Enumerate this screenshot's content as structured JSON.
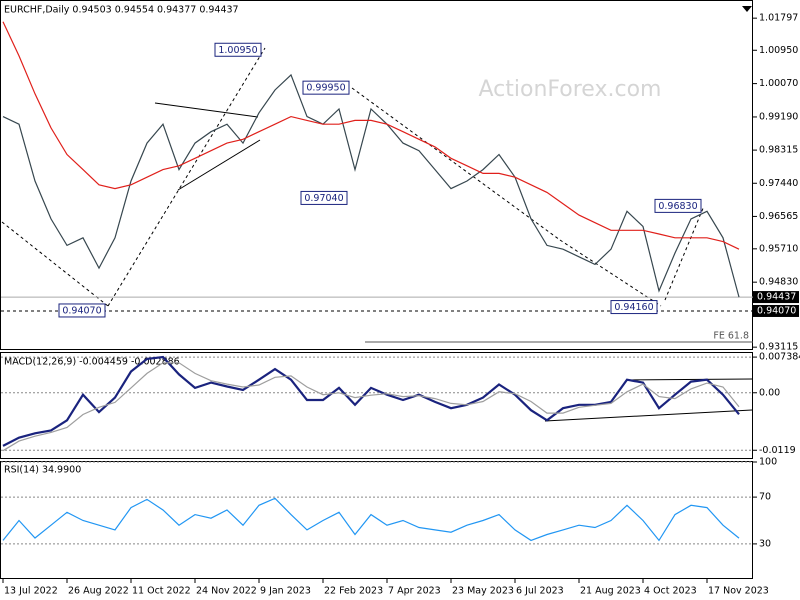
{
  "chart_data": [
    {
      "type": "line",
      "title": "EURCHF,Daily  0.94503 0.94554 0.94377 0.94437",
      "watermark": "ActionForex.com",
      "x": [
        0,
        8,
        16,
        24,
        32,
        40,
        48,
        56,
        64,
        72,
        80,
        88,
        96,
        104,
        112,
        120,
        128,
        136,
        144,
        152,
        160,
        168,
        176,
        184,
        192,
        200,
        208,
        216,
        224,
        232,
        240,
        248,
        256,
        264,
        272,
        280,
        288,
        296,
        304,
        312,
        320,
        328,
        336,
        344,
        352,
        360,
        368
      ],
      "xlim": [
        -1,
        375
      ],
      "xticks": [
        {
          "value": 0,
          "label": "13 Jul 2022"
        },
        {
          "value": 32,
          "label": "26 Aug 2022"
        },
        {
          "value": 64,
          "label": "11 Oct 2022"
        },
        {
          "value": 96,
          "label": "24 Nov 2022"
        },
        {
          "value": 128,
          "label": "9 Jan 2023"
        },
        {
          "value": 160,
          "label": "22 Feb 2023"
        },
        {
          "value": 192,
          "label": "7 Apr 2023"
        },
        {
          "value": 224,
          "label": "23 May 2023"
        },
        {
          "value": 256,
          "label": "6 Jul 2023"
        },
        {
          "value": 288,
          "label": "21 Aug 2023"
        },
        {
          "value": 320,
          "label": "4 Oct 2023"
        },
        {
          "value": 352,
          "label": "17 Nov 2023"
        }
      ],
      "ylim": [
        0.9304,
        1.0225
      ],
      "yticks": [
        1.01797,
        {
          "value": 1.0095,
          "label": "1.00950"
        },
        {
          "value": 1.0007,
          "label": "1.00070"
        },
        {
          "value": 0.9919,
          "label": "0.99190"
        },
        0.98315,
        {
          "value": 0.9744,
          "label": "0.97440"
        },
        0.96565,
        {
          "value": 0.9571,
          "label": "0.95710"
        },
        {
          "value": 0.9483,
          "label": "0.94830"
        },
        0.93115
      ],
      "series": [
        {
          "color": "#37474f",
          "values": [
            0.992,
            0.99,
            0.975,
            0.965,
            0.958,
            0.96,
            0.952,
            0.96,
            0.975,
            0.985,
            0.99,
            0.978,
            0.985,
            0.988,
            0.99,
            0.985,
            0.993,
            0.999,
            1.003,
            0.992,
            0.99,
            0.994,
            0.978,
            0.994,
            0.99,
            0.985,
            0.983,
            0.978,
            0.973,
            0.975,
            0.978,
            0.982,
            0.976,
            0.965,
            0.958,
            0.957,
            0.955,
            0.953,
            0.957,
            0.967,
            0.963,
            0.946,
            0.956,
            0.965,
            0.967,
            0.96,
            0.94437
          ]
        },
        {
          "color": "#e0201b",
          "values": [
            1.017,
            1.008,
            0.998,
            0.989,
            0.982,
            0.978,
            0.974,
            0.973,
            0.974,
            0.976,
            0.978,
            0.979,
            0.981,
            0.983,
            0.985,
            0.986,
            0.988,
            0.99,
            0.992,
            0.991,
            0.99,
            0.99,
            0.991,
            0.991,
            0.99,
            0.988,
            0.986,
            0.984,
            0.981,
            0.979,
            0.977,
            0.977,
            0.976,
            0.974,
            0.972,
            0.969,
            0.966,
            0.964,
            0.962,
            0.962,
            0.962,
            0.961,
            0.96,
            0.96,
            0.96,
            0.959,
            0.957
          ]
        }
      ],
      "price_labels": [
        {
          "value": 0.94437,
          "label": "0.94437"
        },
        {
          "value": 0.9407,
          "label": "0.94070"
        }
      ],
      "annotations": [
        {
          "x": 131,
          "value": 1.0095,
          "label": "1.00950"
        },
        {
          "x": 175,
          "value": 0.9995,
          "label": "0.99950"
        },
        {
          "x": 174,
          "value": 0.9704,
          "label": "0.97040"
        },
        {
          "x": 53,
          "value": 0.9407,
          "label": "0.94070"
        },
        {
          "x": 329,
          "value": 0.9416,
          "label": "0.94160"
        },
        {
          "x": 351,
          "value": 0.9683,
          "label": "0.96830"
        }
      ],
      "fe_level": {
        "value": 0.9325,
        "label": "FE 61.8"
      }
    },
    {
      "type": "line",
      "title": "MACD(12,26,9) -0.004459 -0.002886",
      "x": [
        0,
        8,
        16,
        24,
        32,
        40,
        48,
        56,
        64,
        72,
        80,
        88,
        96,
        104,
        112,
        120,
        128,
        136,
        144,
        152,
        160,
        168,
        176,
        184,
        192,
        200,
        208,
        216,
        224,
        232,
        240,
        248,
        256,
        264,
        272,
        280,
        288,
        296,
        304,
        312,
        320,
        328,
        336,
        344,
        352,
        360,
        368
      ],
      "xlim": [
        -1,
        375
      ],
      "ylim": [
        -0.01371,
        0.00823
      ],
      "yticks": [
        0.007384,
        {
          "value": 0,
          "label": "0.00"
        },
        -0.0119
      ],
      "series": [
        {
          "color": "#1a237e",
          "values": [
            -0.011,
            -0.0093,
            -0.0084,
            -0.0078,
            -0.0057,
            -0.0004,
            -0.004,
            -0.001,
            0.0044,
            0.007,
            0.0074,
            0.0038,
            0.001,
            0.0021,
            0.0013,
            0.0006,
            0.0027,
            0.0049,
            0.0027,
            -0.0015,
            -0.0015,
            0.001,
            -0.0025,
            0.001,
            -0.0004,
            -0.0015,
            -0.0004,
            -0.0019,
            -0.0032,
            -0.0025,
            -0.001,
            0.0017,
            -0.0004,
            -0.0036,
            -0.0057,
            -0.0032,
            -0.0025,
            -0.0025,
            -0.0019,
            0.0027,
            0.0021,
            -0.0032,
            -0.0004,
            0.0023,
            0.0027,
            -0.0004,
            -0.004459
          ]
        },
        {
          "color": "#9e9e9e",
          "values": [
            -0.012,
            -0.01,
            -0.009,
            -0.0082,
            -0.0072,
            -0.0045,
            -0.003,
            -0.002,
            0.001,
            0.004,
            0.0062,
            0.0062,
            0.004,
            0.0025,
            0.0018,
            0.0012,
            0.0016,
            0.0032,
            0.0035,
            0.0012,
            -0.0004,
            0.0,
            -0.001,
            -0.0005,
            -0.0002,
            -0.0008,
            -0.0006,
            -0.0012,
            -0.0022,
            -0.0025,
            -0.0018,
            0.0002,
            -0.0002,
            -0.0018,
            -0.0042,
            -0.0042,
            -0.003,
            -0.0026,
            -0.0022,
            0.0002,
            0.0018,
            -0.0008,
            -0.0012,
            0.0008,
            0.002,
            0.0012,
            -0.002886
          ]
        }
      ]
    },
    {
      "type": "line",
      "title": "RSI(14) 34.9900",
      "x": [
        0,
        8,
        16,
        24,
        32,
        40,
        48,
        56,
        64,
        72,
        80,
        88,
        96,
        104,
        112,
        120,
        128,
        136,
        144,
        152,
        160,
        168,
        176,
        184,
        192,
        200,
        208,
        216,
        224,
        232,
        240,
        248,
        256,
        264,
        272,
        280,
        288,
        296,
        304,
        312,
        320,
        328,
        336,
        344,
        352,
        360,
        368
      ],
      "xlim": [
        -1,
        375
      ],
      "ylim": [
        0,
        100
      ],
      "yticks": [
        100,
        70,
        30
      ],
      "series": [
        {
          "color": "#2196f3",
          "values": [
            33,
            50,
            35,
            46,
            57,
            50,
            46,
            42,
            61,
            68,
            59,
            46,
            55,
            52,
            59,
            46,
            63,
            69,
            55,
            42,
            50,
            57,
            38,
            55,
            46,
            50,
            44,
            42,
            40,
            46,
            50,
            55,
            42,
            33,
            38,
            42,
            46,
            44,
            50,
            63,
            50,
            33,
            55,
            63,
            61,
            46,
            34.99
          ]
        }
      ]
    }
  ]
}
